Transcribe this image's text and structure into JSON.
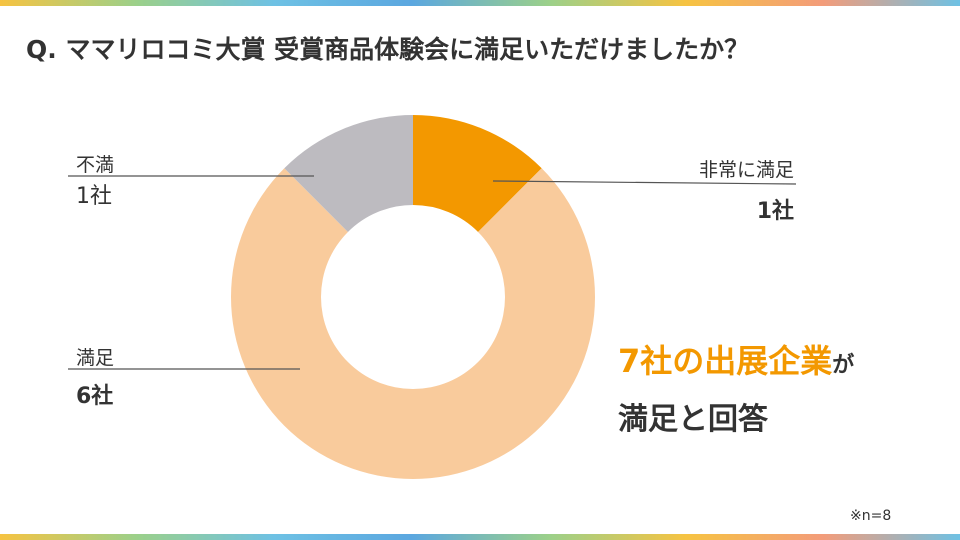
{
  "title": "Q. ママリロコミ大賞 受賞商品体験会に満足いただけましたか？",
  "chart_data": {
    "type": "pie",
    "title": "Q. ママリロコミ大賞 受賞商品体験会に満足いただけましたか？",
    "categories": [
      "非常に満足",
      "満足",
      "不満"
    ],
    "values": [
      1,
      6,
      1
    ],
    "value_labels": [
      "1社",
      "6社",
      "1社"
    ],
    "colors": [
      "#F39800",
      "#F9CB9C",
      "#BDBBC0"
    ],
    "style": "donut",
    "legend": "none"
  },
  "labels": {
    "very_satisfied": {
      "name": "非常に満足",
      "value": "1社"
    },
    "satisfied": {
      "name": "満足",
      "value": "6社"
    },
    "dissatisfied": {
      "name": "不満",
      "value": "1社"
    }
  },
  "headline": {
    "highlight": "7社の出展企業",
    "ga": "が",
    "line2": "満足と回答"
  },
  "note": "※n=8",
  "colors": {
    "accent": "#F39800",
    "text": "#333333"
  }
}
